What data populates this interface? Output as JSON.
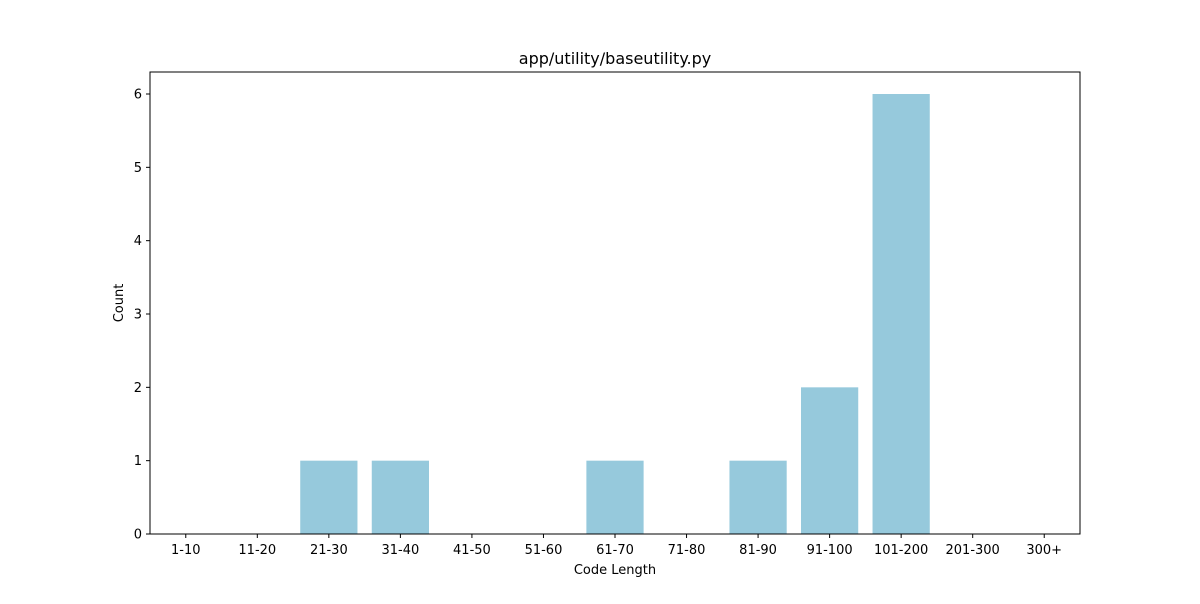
{
  "chart_data": {
    "type": "bar",
    "title": "app/utility/baseutility.py",
    "xlabel": "Code Length",
    "ylabel": "Count",
    "categories": [
      "1-10",
      "11-20",
      "21-30",
      "31-40",
      "41-50",
      "51-60",
      "61-70",
      "71-80",
      "81-90",
      "91-100",
      "101-200",
      "201-300",
      "300+"
    ],
    "values": [
      0,
      0,
      1,
      1,
      0,
      0,
      1,
      0,
      1,
      2,
      6,
      0,
      0
    ],
    "ylim": [
      0,
      6.3
    ],
    "yticks": [
      0,
      1,
      2,
      3,
      4,
      5,
      6
    ],
    "grid": false,
    "legend": "none",
    "bar_color": "#96c9dc",
    "axis_color": "#000000"
  }
}
